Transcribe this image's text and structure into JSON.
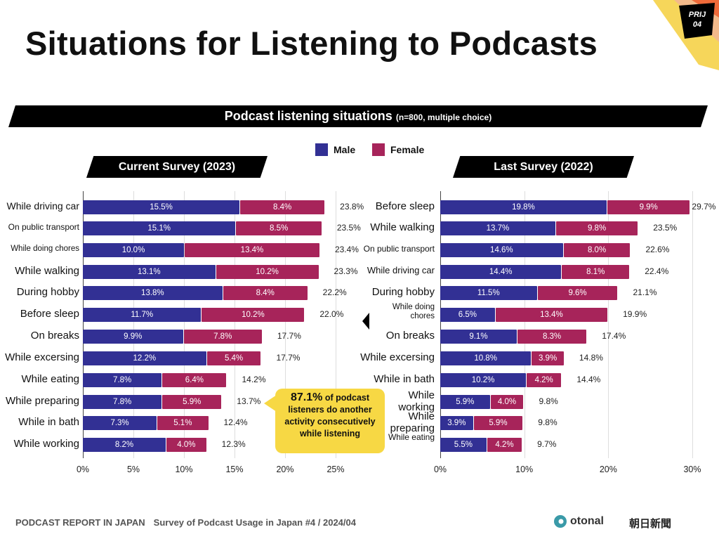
{
  "title": "Situations for Listening to Podcasts",
  "badge": "PRIJ\n04",
  "banner": {
    "main": "Podcast listening situations",
    "note": "(n=800, multiple choice)"
  },
  "legend": {
    "male": "Male",
    "female": "Female"
  },
  "colors": {
    "male": "#323094",
    "female": "#a7245a",
    "callout": "#f7d844"
  },
  "callout": {
    "highlight": "87.1%",
    "text": "of podcast listeners do another activity consecutively while listening"
  },
  "footer": {
    "left": "PODCAST REPORT IN JAPAN",
    "right": "Survey of Podcast Usage in Japan #4 / 2024/04"
  },
  "logos": {
    "otonal": "otonal",
    "asahi": "朝日新聞"
  },
  "chart_data": [
    {
      "type": "bar",
      "stacked": true,
      "orientation": "horizontal",
      "title": "Current Survey (2023)",
      "categories": [
        "While driving car",
        "On public transport",
        "While doing chores",
        "While walking",
        "During hobby",
        "Before sleep",
        "On breaks",
        "While excersing",
        "While eating",
        "While preparing",
        "While in bath",
        "While working"
      ],
      "series": [
        {
          "name": "Male",
          "values": [
            15.5,
            15.1,
            10.0,
            13.1,
            13.8,
            11.7,
            9.9,
            12.2,
            7.8,
            7.8,
            7.3,
            8.2
          ]
        },
        {
          "name": "Female",
          "values": [
            8.4,
            8.5,
            13.4,
            10.2,
            8.4,
            10.2,
            7.8,
            5.4,
            6.4,
            5.9,
            5.1,
            4.0
          ]
        }
      ],
      "totals": [
        23.8,
        23.5,
        23.4,
        23.3,
        22.2,
        22.0,
        17.7,
        17.7,
        14.2,
        13.7,
        12.4,
        12.3
      ],
      "xlim": [
        0,
        25
      ],
      "xticks": [
        "0%",
        "5%",
        "10%",
        "15%",
        "20%",
        "25%"
      ],
      "grid": true
    },
    {
      "type": "bar",
      "stacked": true,
      "orientation": "horizontal",
      "title": "Last Survey (2022)",
      "categories": [
        "Before sleep",
        "While walking",
        "On public transport",
        "While driving car",
        "During hobby",
        "While doing chores",
        "On breaks",
        "While excersing",
        "While in bath",
        "While working",
        "While preparing",
        "While eating"
      ],
      "series": [
        {
          "name": "Male",
          "values": [
            19.8,
            13.7,
            14.6,
            14.4,
            11.5,
            6.5,
            9.1,
            10.8,
            10.2,
            5.9,
            3.9,
            5.5
          ]
        },
        {
          "name": "Female",
          "values": [
            9.9,
            9.8,
            8.0,
            8.1,
            9.6,
            13.4,
            8.3,
            3.9,
            4.2,
            4.0,
            5.9,
            4.2
          ]
        }
      ],
      "totals": [
        29.7,
        23.5,
        22.6,
        22.4,
        21.1,
        19.9,
        17.4,
        14.8,
        14.4,
        9.8,
        9.8,
        9.7
      ],
      "xlim": [
        0,
        30
      ],
      "xticks": [
        "0%",
        "10%",
        "20%",
        "30%"
      ],
      "grid": true
    }
  ]
}
